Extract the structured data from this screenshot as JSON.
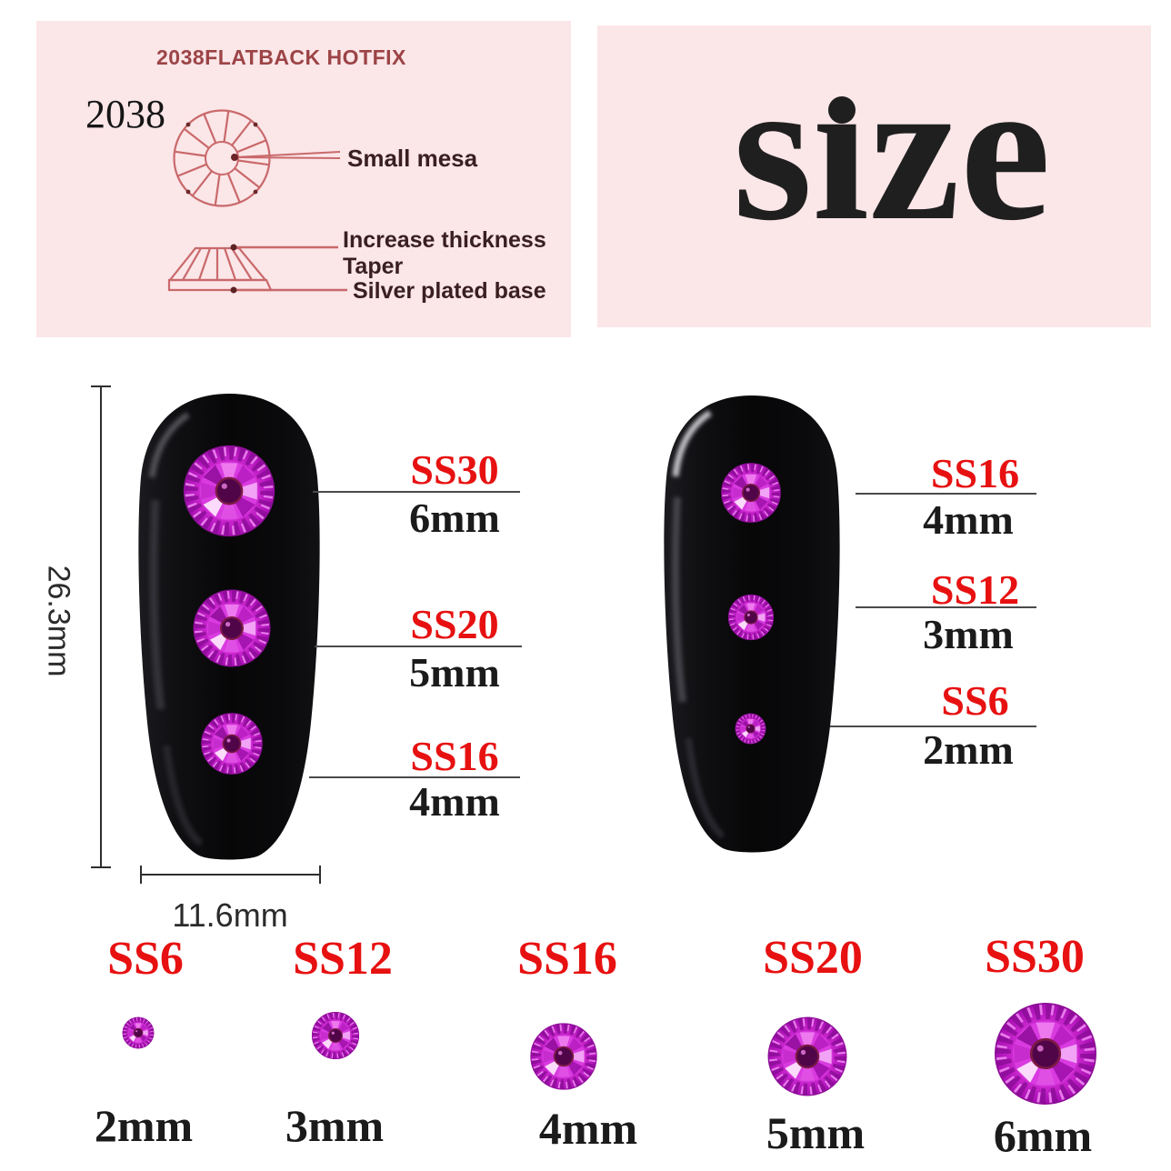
{
  "spec_panel": {
    "header": "2038FLATBACK HOTFIX",
    "model_number": "2038",
    "top_view_label": "Small mesa",
    "side_view_labels": [
      "Increase thickness",
      "Taper",
      "Silver plated base"
    ]
  },
  "size_panel": {
    "title": "size",
    "title_display": "sıze"
  },
  "dimensions": {
    "nail_height": "26.3mm",
    "nail_width": "11.6mm"
  },
  "left_nail_callouts": [
    {
      "ss": "SS30",
      "size": "6mm"
    },
    {
      "ss": "SS20",
      "size": "5mm"
    },
    {
      "ss": "SS16",
      "size": "4mm"
    }
  ],
  "right_nail_callouts": [
    {
      "ss": "SS16",
      "size": "4mm"
    },
    {
      "ss": "SS12",
      "size": "3mm"
    },
    {
      "ss": "SS6",
      "size": "2mm"
    }
  ],
  "size_chart": [
    {
      "ss": "SS6",
      "size": "2mm"
    },
    {
      "ss": "SS12",
      "size": "3mm"
    },
    {
      "ss": "SS16",
      "size": "4mm"
    },
    {
      "ss": "SS20",
      "size": "5mm"
    },
    {
      "ss": "SS30",
      "size": "6mm"
    }
  ],
  "colors": {
    "accent_red": "#e71111",
    "panel_pink": "#fbe6e8",
    "diagram_stroke": "#c9696b",
    "spec_header": "#9c4446",
    "spec_label": "#3a1f21",
    "text_black": "#1b1b1b",
    "gem_magenta": "#c521c9",
    "nail_black": "#0a0a0c",
    "background": "#ffffff"
  }
}
